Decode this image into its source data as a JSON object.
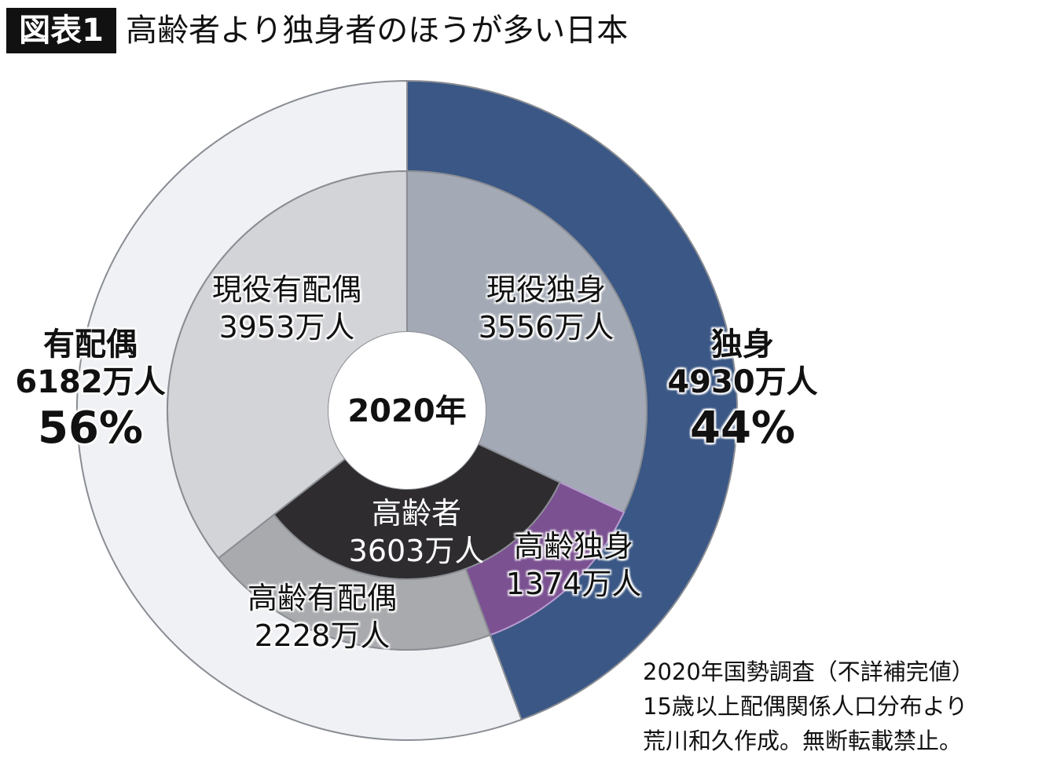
{
  "title": {
    "badge": "図表1",
    "text": "高齢者より独身者のほうが多い日本"
  },
  "chart_data": {
    "type": "pie",
    "subtype": "nested-donut",
    "center_label": "2020年",
    "unit": "万人",
    "outer_ring": [
      {
        "name": "独身",
        "value": 4930,
        "value_label": "4930万人",
        "percent_label": "44%",
        "color": "#3a5785"
      },
      {
        "name": "有配偶",
        "value": 6182,
        "value_label": "6182万人",
        "percent_label": "56%",
        "color": "#f0f1f4"
      }
    ],
    "middle_ring": [
      {
        "name": "現役独身",
        "value": 3556,
        "value_label": "3556万人",
        "color": "#a3aab5"
      },
      {
        "name": "高齢独身",
        "value": 1374,
        "value_label": "1374万人",
        "color": "#7b5191"
      },
      {
        "name": "高齢有配偶",
        "value": 2228,
        "value_label": "2228万人",
        "color": "#a9aaae"
      },
      {
        "name": "現役有配偶",
        "value": 3953,
        "value_label": "3953万人",
        "color": "#d3d4d8"
      }
    ],
    "inner_group": {
      "name": "高齢者",
      "value": 3603,
      "value_label": "3603万人",
      "color": "#2e2c2f"
    }
  },
  "note": [
    "2020年国勢調査（不詳補完値）",
    "15歳以上配偶関係人口分布より",
    "荒川和久作成。無断転載禁止。"
  ]
}
